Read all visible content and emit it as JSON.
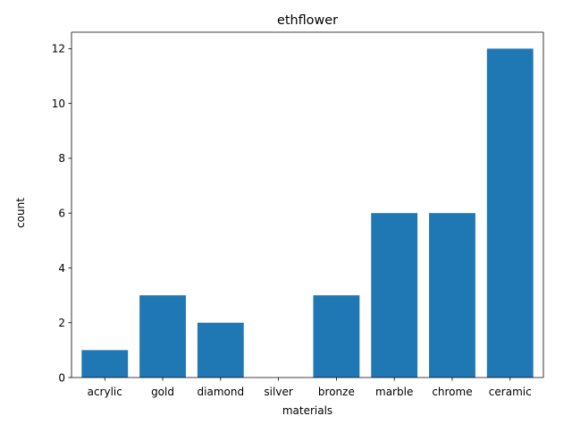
{
  "chart_data": {
    "type": "bar",
    "title": "ethflower",
    "xlabel": "materials",
    "ylabel": "count",
    "categories": [
      "acrylic",
      "gold",
      "diamond",
      "silver",
      "bronze",
      "marble",
      "chrome",
      "ceramic"
    ],
    "values": [
      1,
      3,
      2,
      0,
      3,
      6,
      6,
      12
    ],
    "ylim": [
      0,
      12.6
    ],
    "yticks": [
      0,
      2,
      4,
      6,
      8,
      10,
      12
    ],
    "bar_color": "#1f77b4",
    "grid": false,
    "legend": "none"
  }
}
